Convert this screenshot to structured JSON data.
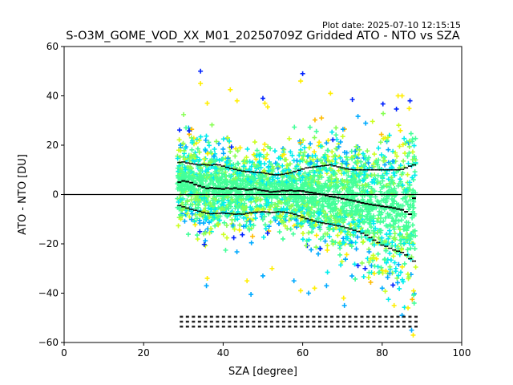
{
  "chart_data": {
    "type": "scatter",
    "title": "S-O3M_GOME_VOD_XX_M01_20250709Z Gridded ATO - NTO vs SZA",
    "subtitle": "Plot date: 2025-07-10 12:15:15",
    "xlabel": "SZA [degree]",
    "ylabel": "ATO - NTO [DU]",
    "xlim": [
      0,
      100
    ],
    "ylim": [
      -60,
      60
    ],
    "xticks": [
      0,
      20,
      40,
      60,
      80,
      100
    ],
    "yticks": [
      -60,
      -40,
      -20,
      0,
      20,
      40,
      60
    ],
    "grid": false,
    "reference_line_y": 0,
    "point_colormap": [
      "#0022ff",
      "#00aaff",
      "#00eeee",
      "#44ff99",
      "#88ff55",
      "#ccff22",
      "#ffee00",
      "#ffbb00"
    ],
    "scatter_extent": {
      "x_range": [
        28.5,
        88.5
      ],
      "sample_points": [
        [
          34.3,
          50
        ],
        [
          34.3,
          45
        ],
        [
          41.8,
          42.5
        ],
        [
          50,
          39
        ],
        [
          50.5,
          37
        ],
        [
          51.2,
          35.5
        ],
        [
          60,
          49
        ],
        [
          59.5,
          46
        ],
        [
          67,
          41
        ],
        [
          72.5,
          38.5
        ],
        [
          84,
          40
        ],
        [
          85,
          40
        ],
        [
          87,
          38
        ],
        [
          36,
          37
        ],
        [
          43.5,
          38
        ],
        [
          46,
          -35
        ],
        [
          35.8,
          -37
        ],
        [
          36,
          -34
        ],
        [
          50,
          -33
        ],
        [
          52.3,
          -30
        ],
        [
          57.8,
          -35
        ],
        [
          59.5,
          -39
        ],
        [
          61.5,
          -40
        ],
        [
          70.3,
          -42
        ],
        [
          70.5,
          -45
        ],
        [
          83,
          -45
        ],
        [
          85,
          -49
        ],
        [
          86.5,
          -46
        ],
        [
          87.4,
          -55
        ],
        [
          87.8,
          -57
        ],
        [
          80,
          -38
        ],
        [
          78,
          -32
        ],
        [
          47,
          -40.5
        ],
        [
          63,
          -38
        ],
        [
          66,
          -37
        ]
      ]
    },
    "series": [
      {
        "style": "solid-black",
        "x": [
          29,
          30,
          31,
          32,
          33,
          34,
          35,
          36,
          37,
          38,
          39,
          40,
          41,
          42,
          43,
          44,
          45,
          46,
          47,
          48,
          49,
          50,
          51,
          52,
          53,
          54,
          55,
          56,
          57,
          58,
          59,
          60,
          61,
          62,
          63,
          64,
          65,
          66,
          67,
          68,
          69,
          70,
          71,
          72,
          73,
          74,
          75,
          76,
          77,
          78,
          79,
          80,
          81,
          82,
          83,
          84,
          85,
          86,
          87,
          88
        ],
        "y": [
          5,
          5.5,
          5.2,
          4.8,
          4.0,
          3.5,
          3.0,
          2.5,
          2.7,
          2.5,
          2.4,
          2.2,
          2.6,
          2.3,
          2.6,
          2.2,
          2.2,
          1.9,
          2.0,
          2.3,
          1.9,
          1.6,
          1.4,
          1.0,
          1.2,
          1.3,
          1.6,
          1.5,
          1.7,
          1.4,
          1.5,
          1.4,
          1.0,
          0.8,
          0.6,
          0.2,
          0.0,
          -0.4,
          -0.8,
          -1.0,
          -1.3,
          -1.7,
          -2.0,
          -2.3,
          -2.6,
          -3.0,
          -3.4,
          -3.7,
          -4.0,
          -4.3,
          -4.5,
          -4.8,
          -5.0,
          -5.2,
          -5.5,
          -5.9,
          -6.2,
          -7.0,
          -8.0,
          -1.5
        ]
      },
      {
        "style": "dotted-black-upper",
        "x": [
          29,
          30,
          31,
          32,
          33,
          34,
          35,
          36,
          37,
          38,
          39,
          40,
          41,
          42,
          43,
          44,
          45,
          46,
          47,
          48,
          49,
          50,
          51,
          52,
          53,
          54,
          55,
          56,
          57,
          58,
          59,
          60,
          61,
          62,
          63,
          64,
          65,
          66,
          67,
          68,
          69,
          70,
          71,
          72,
          73,
          74,
          75,
          76,
          77,
          78,
          79,
          80,
          81,
          82,
          83,
          84,
          85,
          86,
          87,
          88
        ],
        "y": [
          13,
          13.2,
          12.8,
          12.5,
          12.3,
          12.0,
          12.2,
          12.0,
          11.9,
          12.2,
          12.0,
          11.5,
          11.0,
          10.5,
          10.2,
          9.8,
          9.5,
          9.3,
          9.2,
          9.0,
          8.9,
          8.8,
          8.5,
          8.2,
          8.0,
          8.0,
          8.2,
          8.5,
          8.8,
          9.3,
          9.8,
          10.3,
          10.8,
          11.0,
          11.2,
          11.4,
          11.6,
          11.8,
          12.0,
          11.6,
          11.2,
          10.8,
          10.4,
          10.2,
          10.0,
          10.0,
          10.0,
          10.0,
          10.0,
          10.0,
          10.0,
          10.0,
          10.0,
          10.0,
          10.0,
          10.0,
          10.2,
          10.8,
          11.5,
          12.0
        ]
      },
      {
        "style": "dotted-black-lower",
        "x": [
          29,
          30,
          31,
          32,
          33,
          34,
          35,
          36,
          37,
          38,
          39,
          40,
          41,
          42,
          43,
          44,
          45,
          46,
          47,
          48,
          49,
          50,
          51,
          52,
          53,
          54,
          55,
          56,
          57,
          58,
          59,
          60,
          61,
          62,
          63,
          64,
          65,
          66,
          67,
          68,
          69,
          70,
          71,
          72,
          73,
          74,
          75,
          76,
          77,
          78,
          79,
          80,
          81,
          82,
          83,
          84,
          85,
          86,
          87,
          88
        ],
        "y": [
          -4.5,
          -5.0,
          -5.5,
          -6.0,
          -6.4,
          -6.8,
          -7.2,
          -7.6,
          -7.8,
          -7.7,
          -7.6,
          -7.5,
          -7.7,
          -7.8,
          -8.0,
          -7.9,
          -8.0,
          -7.6,
          -7.4,
          -7.2,
          -7.1,
          -7.0,
          -7.1,
          -7.3,
          -7.2,
          -7.0,
          -7.1,
          -7.3,
          -7.6,
          -8.0,
          -8.6,
          -9.2,
          -9.8,
          -10.3,
          -10.8,
          -11.2,
          -11.5,
          -11.8,
          -12.0,
          -12.4,
          -12.7,
          -13.0,
          -13.5,
          -14.0,
          -14.5,
          -15.0,
          -15.7,
          -16.5,
          -17.5,
          -18.5,
          -19.5,
          -20.5,
          -21.0,
          -21.8,
          -22.5,
          -23.0,
          -23.5,
          -24.5,
          -26.0,
          -27.0
        ]
      }
    ],
    "count_label_rows": [
      {
        "y": -49.8,
        "x_range": [
          29.5,
          88.5
        ]
      },
      {
        "y": -51.8,
        "x_range": [
          29.5,
          88.5
        ]
      },
      {
        "y": -53.8,
        "x_range": [
          29.5,
          88.5
        ]
      }
    ]
  }
}
